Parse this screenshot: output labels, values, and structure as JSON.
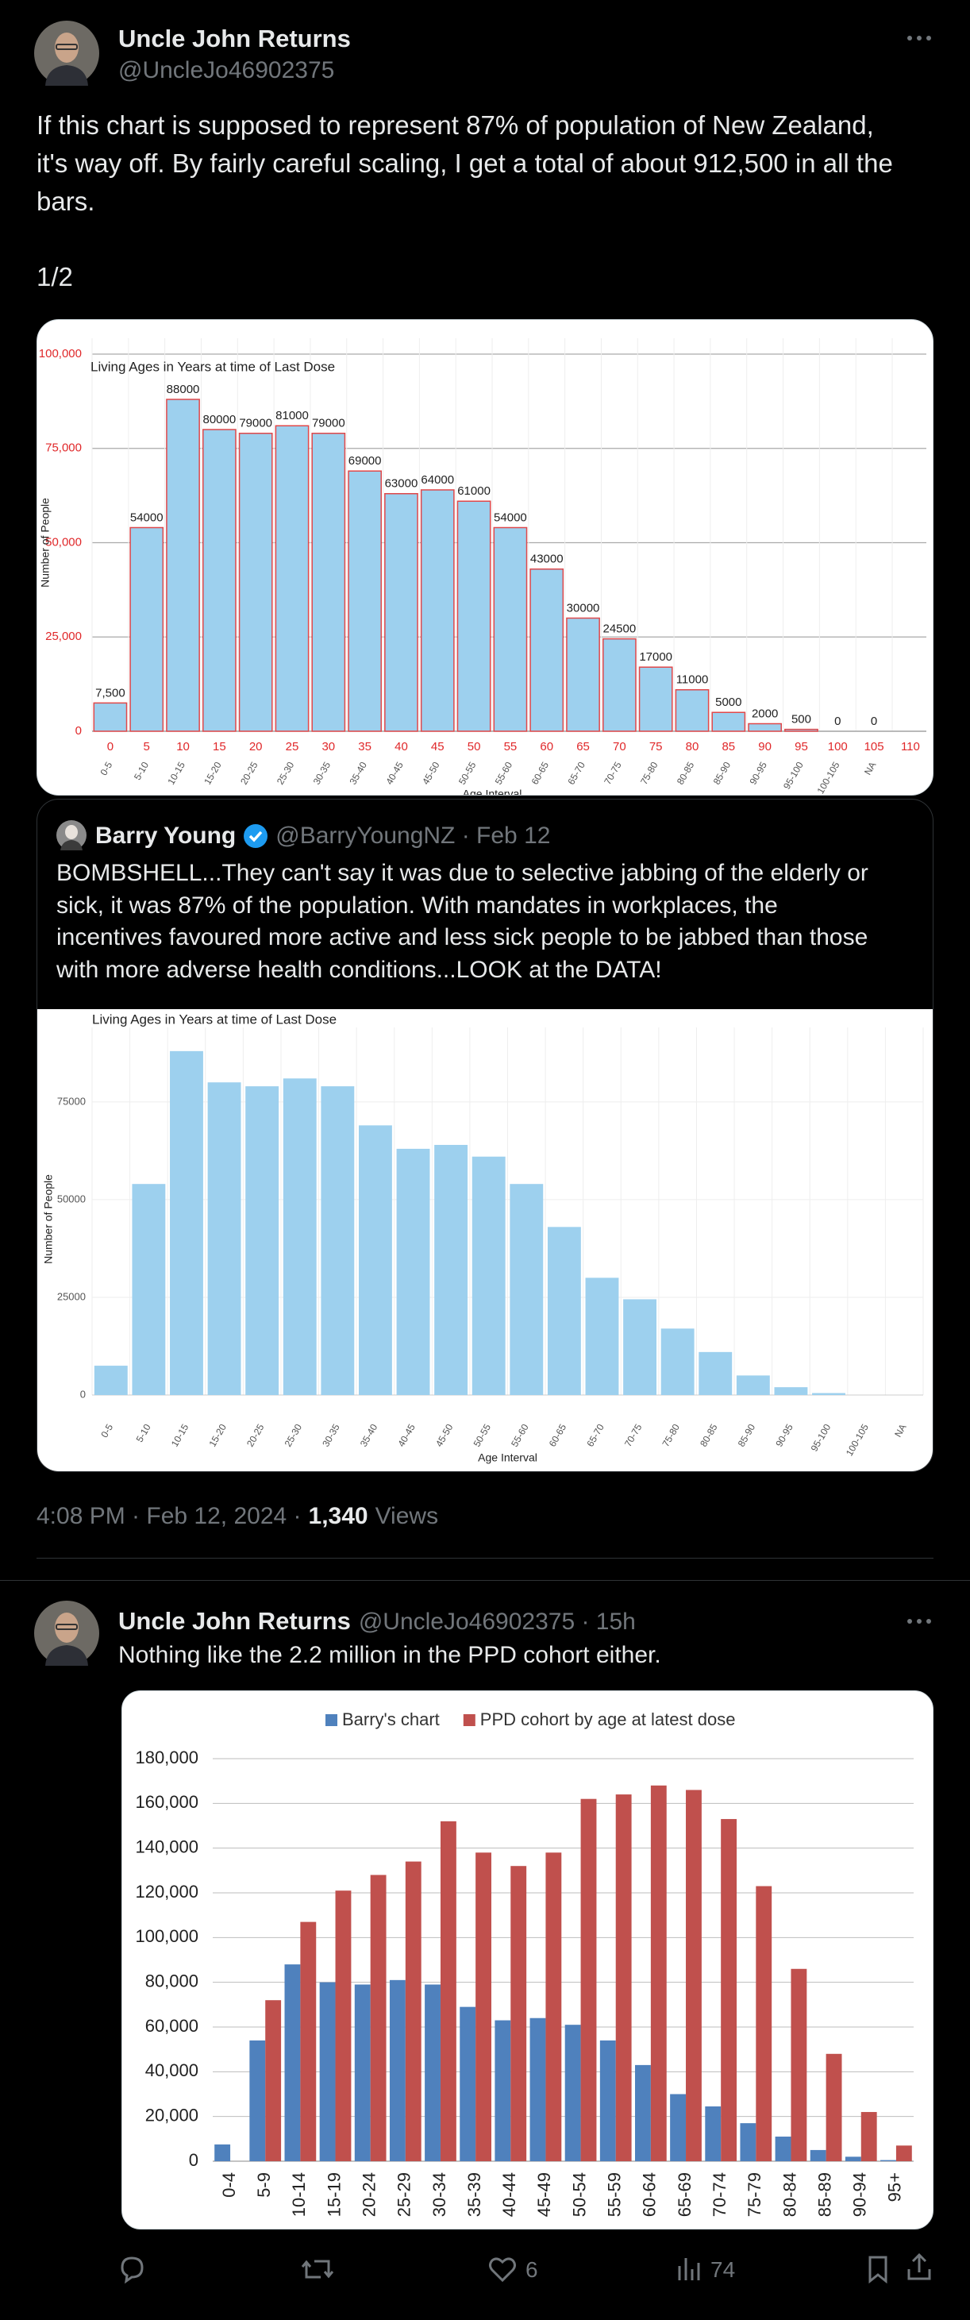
{
  "tweet": {
    "author": "Uncle John Returns",
    "handle": "@UncleJo46902375",
    "text": [
      "If this chart is supposed to represent 87% of population of New Zealand,",
      "it's way off. By fairly careful scaling, I get a total of about 912,500 in all the",
      "bars."
    ],
    "thread_marker": "1/2",
    "chart": {
      "type": "bar",
      "title": "Living Ages in Years at time of Last Dose",
      "y_label": "Number of People",
      "x_label": "Age Interval",
      "categories": [
        "0-5",
        "5-10",
        "10-15",
        "15-20",
        "20-25",
        "25-30",
        "30-35",
        "35-40",
        "40-45",
        "45-50",
        "50-55",
        "55-60",
        "60-65",
        "65-70",
        "70-75",
        "75-80",
        "80-85",
        "85-90",
        "90-95",
        "95-100",
        "100-105",
        "NA"
      ],
      "values": [
        7500,
        54000,
        88000,
        80000,
        79000,
        81000,
        79000,
        69000,
        63000,
        64000,
        61000,
        54000,
        43000,
        30000,
        24500,
        17000,
        11000,
        5000,
        2000,
        500,
        0,
        0
      ],
      "value_labels": [
        "7,500",
        "54000",
        "88000",
        "80000",
        "79000",
        "81000",
        "79000",
        "69000",
        "63000",
        "64000",
        "61000",
        "54000",
        "43000",
        "30000",
        "24500",
        "17000",
        "11000",
        "5000",
        "2000",
        "500",
        "0",
        "0"
      ],
      "x_edge_labels": [
        0,
        5,
        10,
        15,
        20,
        25,
        30,
        35,
        40,
        45,
        50,
        55,
        60,
        65,
        70,
        75,
        80,
        85,
        90,
        95,
        100,
        105,
        110
      ],
      "color": "#9dd0ee",
      "bar_stroke": "#e0484a",
      "tick_color": "#e0282a",
      "ylim": [
        0,
        100000
      ],
      "yticks": [
        {
          "value": 0,
          "label": "0"
        },
        {
          "value": 25000,
          "label": "25,000"
        },
        {
          "value": 50000,
          "label": "50,000"
        },
        {
          "value": 75000,
          "label": "75,000"
        },
        {
          "value": 100000,
          "label": "100,000"
        }
      ],
      "grid": true
    },
    "quoted_tweet": {
      "author": "Barry Young",
      "byline": "@BarryYoungNZ · Feb 12",
      "text": [
        "BOMBSHELL...They can't say it was due to selective jabbing of the elderly or",
        "sick, it was 87% of the population. With mandates in workplaces, the",
        "incentives favoured more active and less sick people to be jabbed than those",
        "with more adverse health conditions...LOOK at the DATA!"
      ],
      "chart": {
        "type": "bar",
        "title": "Living Ages in Years at time of Last Dose",
        "y_label": "Number of People",
        "x_label": "Age Interval",
        "categories": [
          "0-5",
          "5-10",
          "10-15",
          "15-20",
          "20-25",
          "25-30",
          "30-35",
          "35-40",
          "40-45",
          "45-50",
          "50-55",
          "55-60",
          "60-65",
          "65-70",
          "70-75",
          "75-80",
          "80-85",
          "85-90",
          "90-95",
          "95-100",
          "100-105",
          "NA"
        ],
        "values": [
          7500,
          54000,
          88000,
          80000,
          79000,
          81000,
          79000,
          69000,
          63000,
          64000,
          61000,
          54000,
          43000,
          30000,
          24500,
          17000,
          11000,
          5000,
          2000,
          500,
          0,
          0
        ],
        "color": "#9dd0ee",
        "ylim": [
          0,
          90000
        ],
        "yticks": [
          0,
          25000,
          50000,
          75000
        ],
        "grid": true
      }
    },
    "timestamp": "4:08 PM · Feb 12, 2024 ·",
    "views": "1,340",
    "views_label": "Views"
  },
  "reply": {
    "author": "Uncle John Returns",
    "byline": "@UncleJo46902375 · 15h",
    "text": "Nothing like the 2.2 million in the PPD cohort either.",
    "chart": {
      "type": "bar",
      "categories": [
        "0-4",
        "5-9",
        "10-14",
        "15-19",
        "20-24",
        "25-29",
        "30-34",
        "35-39",
        "40-44",
        "45-49",
        "50-54",
        "55-59",
        "60-64",
        "65-69",
        "70-74",
        "75-79",
        "80-84",
        "85-89",
        "90-94",
        "95+"
      ],
      "series": [
        {
          "name": "Barry's chart",
          "color": "#4f81bd",
          "values": [
            7500,
            54000,
            88000,
            80000,
            79000,
            81000,
            79000,
            69000,
            63000,
            64000,
            61000,
            54000,
            43000,
            30000,
            24500,
            17000,
            11000,
            5000,
            2000,
            500
          ]
        },
        {
          "name": "PPD cohort by age at latest dose",
          "color": "#c0504d",
          "values": [
            0,
            72000,
            107000,
            121000,
            128000,
            134000,
            152000,
            138000,
            132000,
            138000,
            162000,
            164000,
            168000,
            166000,
            153000,
            123000,
            86000,
            48000,
            22000,
            7000
          ]
        }
      ],
      "legend": "top",
      "ylim": [
        0,
        180000
      ],
      "yticks": [
        0,
        {
          "value": 20000,
          "label": "20,000"
        },
        {
          "value": 40000,
          "label": "40,000"
        },
        {
          "value": 60000,
          "label": "60,000"
        },
        {
          "value": 80000,
          "label": "80,000"
        },
        {
          "value": 100000,
          "label": "100,000"
        },
        {
          "value": 120000,
          "label": "120,000"
        },
        {
          "value": 140000,
          "label": "140,000"
        },
        {
          "value": 160000,
          "label": "160,000"
        },
        {
          "value": 180000,
          "label": "180,000"
        }
      ],
      "grid": true
    },
    "likes": 6,
    "views": 74
  }
}
